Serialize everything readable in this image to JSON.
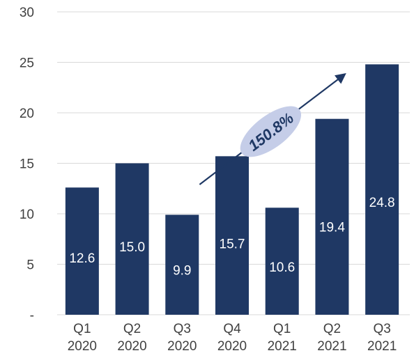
{
  "chart_data": {
    "type": "bar",
    "title": "",
    "xlabel": "",
    "ylabel": "",
    "ylim": [
      0,
      30
    ],
    "yticks": [
      0,
      5,
      10,
      15,
      20,
      25,
      30
    ],
    "ytick_labels": [
      "-",
      "5",
      "10",
      "15",
      "20",
      "25",
      "30"
    ],
    "grid": true,
    "categories": [
      [
        "Q1",
        "2020"
      ],
      [
        "Q2",
        "2020"
      ],
      [
        "Q3",
        "2020"
      ],
      [
        "Q4",
        "2020"
      ],
      [
        "Q1",
        "2021"
      ],
      [
        "Q2",
        "2021"
      ],
      [
        "Q3",
        "2021"
      ]
    ],
    "values": [
      12.6,
      15.0,
      9.9,
      15.7,
      10.6,
      19.4,
      24.8
    ],
    "data_labels": [
      "12.6",
      "15.0",
      "9.9",
      "15.7",
      "10.6",
      "19.4",
      "24.8"
    ],
    "bar_color": "#1f3864",
    "annotation": {
      "text": "150.8%",
      "bubble_color": "#c5cde8",
      "arrow_color": "#1f3864"
    }
  }
}
